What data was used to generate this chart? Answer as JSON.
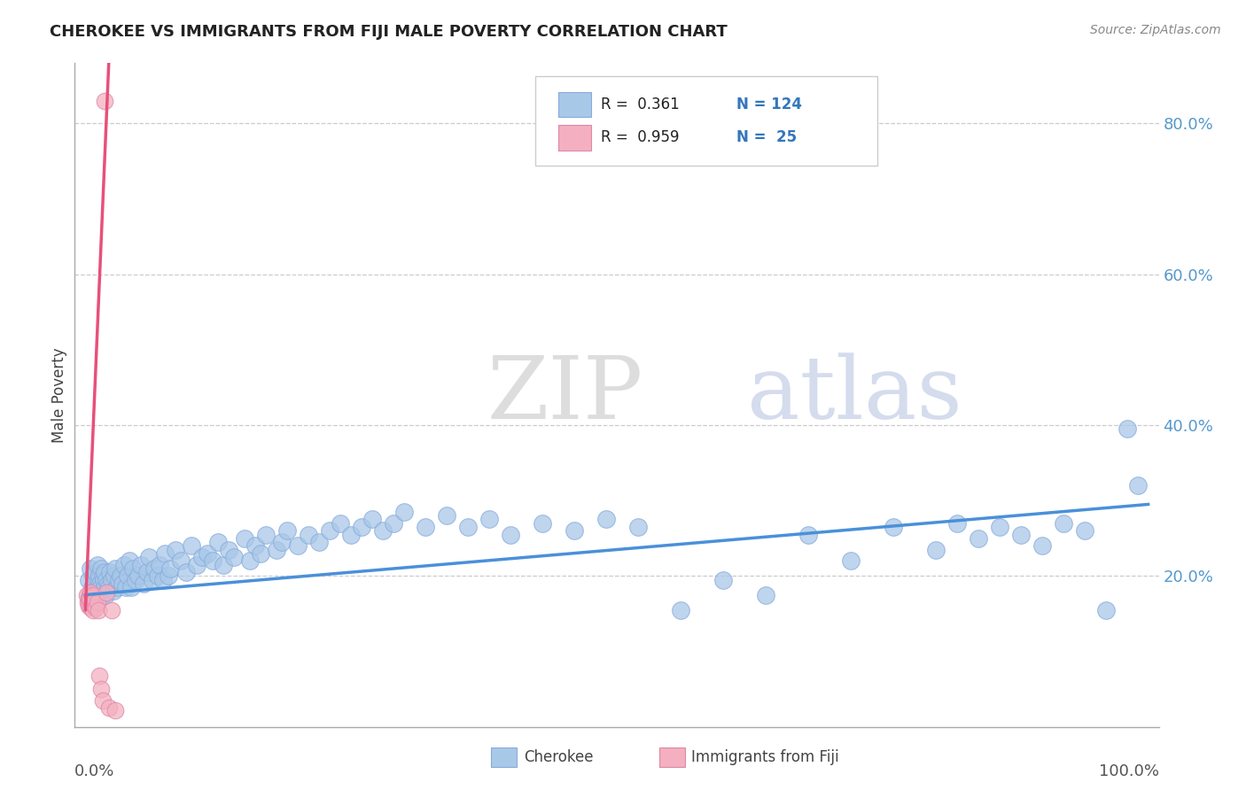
{
  "title": "CHEROKEE VS IMMIGRANTS FROM FIJI MALE POVERTY CORRELATION CHART",
  "source_text": "Source: ZipAtlas.com",
  "ylabel": "Male Poverty",
  "cherokee_color": "#a8c8e8",
  "fiji_color": "#f4b0c0",
  "trendline_cherokee": "#4a90d9",
  "trendline_fiji": "#e8507a",
  "watermark_zip": "ZIP",
  "watermark_atlas": "atlas",
  "background_color": "#ffffff",
  "grid_color": "#cccccc",
  "right_tick_color": "#5599cc",
  "ylim_min": 0.0,
  "ylim_max": 0.88,
  "xlim_min": -0.01,
  "xlim_max": 1.01,
  "grid_yvals": [
    0.2,
    0.4,
    0.6,
    0.8
  ],
  "cherokee_x": [
    0.003,
    0.004,
    0.005,
    0.006,
    0.007,
    0.007,
    0.008,
    0.009,
    0.01,
    0.01,
    0.011,
    0.011,
    0.012,
    0.012,
    0.013,
    0.013,
    0.014,
    0.015,
    0.015,
    0.016,
    0.016,
    0.017,
    0.018,
    0.018,
    0.019,
    0.02,
    0.021,
    0.022,
    0.023,
    0.025,
    0.026,
    0.027,
    0.028,
    0.03,
    0.031,
    0.033,
    0.035,
    0.036,
    0.038,
    0.04,
    0.041,
    0.043,
    0.045,
    0.047,
    0.05,
    0.052,
    0.055,
    0.058,
    0.06,
    0.063,
    0.065,
    0.068,
    0.07,
    0.073,
    0.075,
    0.078,
    0.08,
    0.085,
    0.09,
    0.095,
    0.1,
    0.105,
    0.11,
    0.115,
    0.12,
    0.125,
    0.13,
    0.135,
    0.14,
    0.15,
    0.155,
    0.16,
    0.165,
    0.17,
    0.18,
    0.185,
    0.19,
    0.2,
    0.21,
    0.22,
    0.23,
    0.24,
    0.25,
    0.26,
    0.27,
    0.28,
    0.29,
    0.3,
    0.32,
    0.34,
    0.36,
    0.38,
    0.4,
    0.43,
    0.46,
    0.49,
    0.52,
    0.56,
    0.6,
    0.64,
    0.68,
    0.72,
    0.76,
    0.8,
    0.82,
    0.84,
    0.86,
    0.88,
    0.9,
    0.92,
    0.94,
    0.96,
    0.98,
    0.99
  ],
  "cherokee_y": [
    0.195,
    0.175,
    0.21,
    0.185,
    0.175,
    0.2,
    0.19,
    0.195,
    0.18,
    0.205,
    0.185,
    0.215,
    0.175,
    0.195,
    0.185,
    0.2,
    0.19,
    0.185,
    0.21,
    0.175,
    0.2,
    0.195,
    0.185,
    0.205,
    0.175,
    0.195,
    0.19,
    0.185,
    0.205,
    0.195,
    0.18,
    0.2,
    0.21,
    0.185,
    0.195,
    0.2,
    0.19,
    0.215,
    0.185,
    0.2,
    0.22,
    0.185,
    0.21,
    0.195,
    0.2,
    0.215,
    0.19,
    0.205,
    0.225,
    0.195,
    0.21,
    0.2,
    0.215,
    0.195,
    0.23,
    0.2,
    0.21,
    0.235,
    0.22,
    0.205,
    0.24,
    0.215,
    0.225,
    0.23,
    0.22,
    0.245,
    0.215,
    0.235,
    0.225,
    0.25,
    0.22,
    0.24,
    0.23,
    0.255,
    0.235,
    0.245,
    0.26,
    0.24,
    0.255,
    0.245,
    0.26,
    0.27,
    0.255,
    0.265,
    0.275,
    0.26,
    0.27,
    0.285,
    0.265,
    0.28,
    0.265,
    0.275,
    0.255,
    0.27,
    0.26,
    0.275,
    0.265,
    0.155,
    0.195,
    0.175,
    0.255,
    0.22,
    0.265,
    0.235,
    0.27,
    0.25,
    0.265,
    0.255,
    0.24,
    0.27,
    0.26,
    0.155,
    0.395,
    0.32
  ],
  "fiji_x": [
    0.001,
    0.002,
    0.003,
    0.003,
    0.004,
    0.004,
    0.005,
    0.005,
    0.006,
    0.006,
    0.007,
    0.007,
    0.008,
    0.009,
    0.01,
    0.011,
    0.012,
    0.013,
    0.015,
    0.016,
    0.018,
    0.02,
    0.022,
    0.025,
    0.028
  ],
  "fiji_y": [
    0.175,
    0.165,
    0.17,
    0.16,
    0.168,
    0.172,
    0.158,
    0.178,
    0.162,
    0.172,
    0.155,
    0.175,
    0.162,
    0.168,
    0.158,
    0.165,
    0.155,
    0.068,
    0.05,
    0.035,
    0.83,
    0.178,
    0.025,
    0.155,
    0.022
  ]
}
